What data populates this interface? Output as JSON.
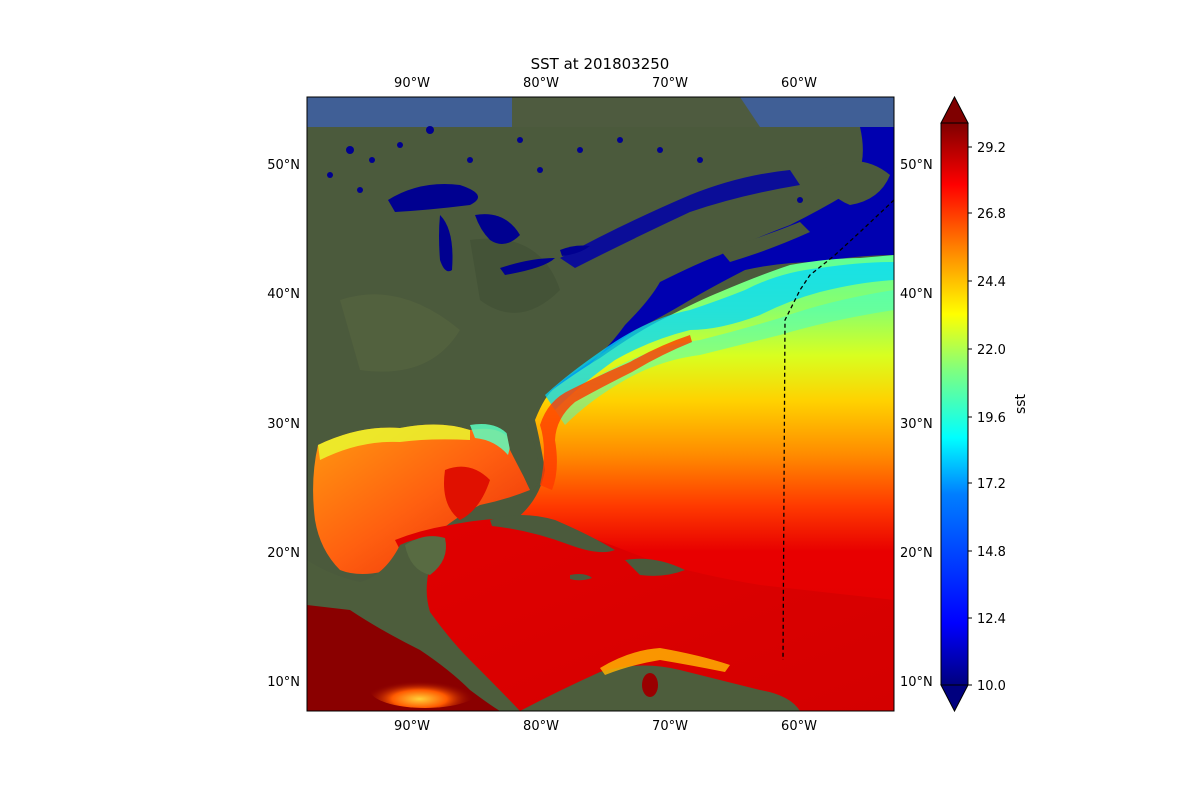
{
  "title": "SST at 201803250",
  "longitude_ticks": [
    "90°W",
    "80°W",
    "70°W",
    "60°W"
  ],
  "latitude_ticks": [
    "50°N",
    "40°N",
    "30°N",
    "20°N",
    "10°N"
  ],
  "colorbar": {
    "label": "sst",
    "ticks": [
      "29.2",
      "26.8",
      "24.4",
      "22.0",
      "19.6",
      "17.2",
      "14.8",
      "12.4",
      "10.0"
    ],
    "min": 10.0,
    "max": 30.4,
    "extend": "both",
    "colormap": [
      "#00007f",
      "#0000ff",
      "#007fff",
      "#00ffff",
      "#7fff7f",
      "#ffff00",
      "#ff7f00",
      "#ff0000",
      "#7f0000"
    ]
  },
  "map": {
    "lon_range": [
      -98.5,
      -52.5
    ],
    "lat_range": [
      8,
      55
    ],
    "projection": "plate carree",
    "satellite_background": true,
    "dashed_boundary": true
  },
  "colors": {
    "land": "#4b5a3c",
    "ocean_outside": "#3f5fa0",
    "cold_water": "#0000b0",
    "boundary_line": "#000000"
  }
}
